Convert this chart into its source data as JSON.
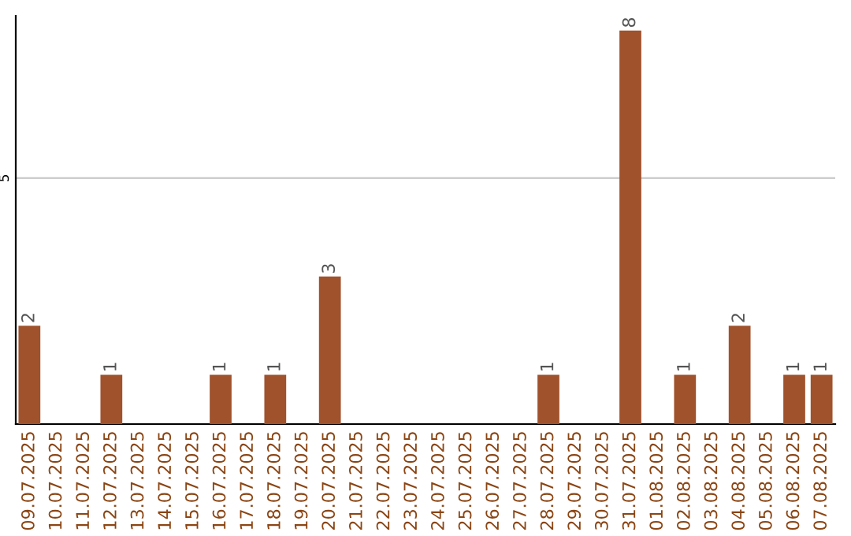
{
  "chart_data": {
    "type": "bar",
    "categories": [
      "09.07.2025",
      "10.07.2025",
      "11.07.2025",
      "12.07.2025",
      "13.07.2025",
      "14.07.2025",
      "15.07.2025",
      "16.07.2025",
      "17.07.2025",
      "18.07.2025",
      "19.07.2025",
      "20.07.2025",
      "21.07.2025",
      "22.07.2025",
      "23.07.2025",
      "24.07.2025",
      "25.07.2025",
      "26.07.2025",
      "27.07.2025",
      "28.07.2025",
      "29.07.2025",
      "30.07.2025",
      "31.07.2025",
      "01.08.2025",
      "02.08.2025",
      "03.08.2025",
      "04.08.2025",
      "05.08.2025",
      "06.08.2025",
      "07.08.2025"
    ],
    "values": [
      2,
      0,
      0,
      1,
      0,
      0,
      0,
      1,
      0,
      1,
      0,
      3,
      0,
      0,
      0,
      0,
      0,
      0,
      0,
      1,
      0,
      0,
      8,
      0,
      1,
      0,
      2,
      0,
      1,
      1
    ],
    "value_labels": [
      "2",
      null,
      null,
      "1",
      null,
      null,
      null,
      "1",
      null,
      "1",
      null,
      "3",
      null,
      null,
      null,
      null,
      null,
      null,
      null,
      "1",
      null,
      null,
      "8",
      null,
      "1",
      null,
      "2",
      null,
      "1",
      "1"
    ],
    "color": "#a0522d",
    "ylim": [
      0,
      8.3
    ],
    "yticks": [
      5
    ],
    "grid": "y",
    "legend": false
  }
}
